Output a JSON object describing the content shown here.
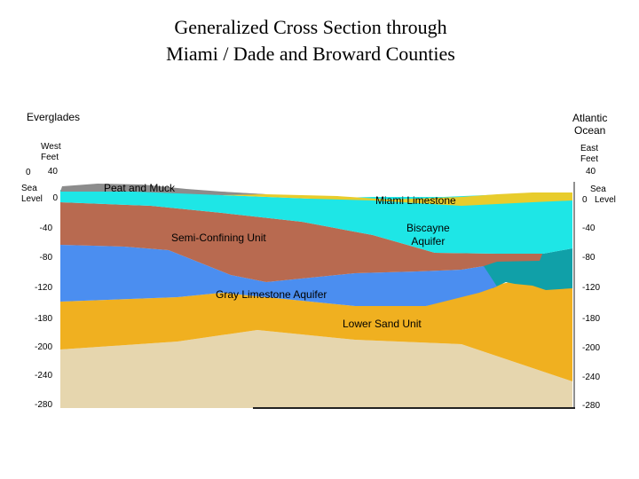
{
  "title": {
    "line1": "Generalized Cross Section through",
    "line2": "Miami / Dade and Broward Counties"
  },
  "regions": {
    "west": "Everglades",
    "east_line1": "Atlantic",
    "east_line2": "Ocean"
  },
  "axis": {
    "west_label_line1": "West",
    "west_label_line2": "Feet",
    "east_label_line1": "East",
    "east_label_line2": "Feet",
    "sea_label": "Sea",
    "level_label": "Level",
    "left_ticks": [
      "40",
      "0",
      "-40",
      "-80",
      "-120",
      "-180",
      "-200",
      "-240",
      "-280"
    ],
    "right_ticks": [
      "40",
      "0",
      "-40",
      "-80",
      "-120",
      "-180",
      "-200",
      "-240",
      "-280"
    ],
    "top_left_zero": "0"
  },
  "units": {
    "peat": "Peat and Muck",
    "miami_limestone": "Miami Limestone",
    "biscayne_line1": "Biscayne",
    "biscayne_line2": "Aquifer",
    "semi_confining": "Semi-Confining Unit",
    "gray_limestone": "Gray Limestone Aquifer",
    "lower_sand": "Lower Sand Unit"
  },
  "colors": {
    "peat": "#8a8a8a",
    "sand_surface": "#e8c82a",
    "biscayne": "#1ee0e0",
    "semi_confining": "#b86a50",
    "gray_limestone": "#4b8ef0",
    "lower_sand": "#f0b020",
    "base": "#e8d8b0",
    "ocean_deep": "#10a0a8"
  }
}
